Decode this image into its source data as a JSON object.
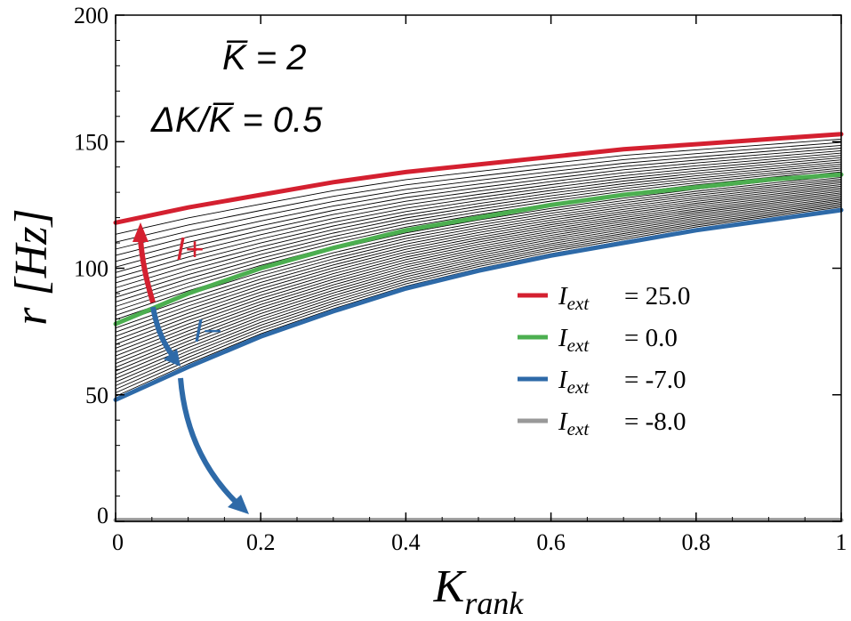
{
  "chart_data": {
    "type": "line",
    "xlabel_main": "K",
    "xlabel_sub": "rank",
    "ylabel": "r [Hz]",
    "xlim": [
      0,
      1
    ],
    "ylim": [
      0,
      200
    ],
    "xticks": [
      0,
      0.2,
      0.4,
      0.6,
      0.8,
      1
    ],
    "xtick_labels": [
      "0",
      "0.2",
      "0.4",
      "0.6",
      "0.8",
      "1"
    ],
    "yticks": [
      0,
      50,
      100,
      150,
      200
    ],
    "ytick_labels": [
      "0",
      "50",
      "100",
      "150",
      "200"
    ],
    "annotation_kbar": "K̅ = 2",
    "annotation_dk": "ΔK/K̅ = 0.5",
    "arrow_plus_label": "I+",
    "arrow_minus_label": "I−",
    "background_curve_count": 38,
    "series": [
      {
        "name": "Iext = 25.0",
        "color": "#d42030",
        "x": [
          0,
          0.1,
          0.2,
          0.3,
          0.4,
          0.5,
          0.6,
          0.7,
          0.8,
          0.9,
          1.0
        ],
        "y": [
          118,
          124,
          129,
          134,
          138,
          141,
          144,
          147,
          149,
          151,
          153
        ]
      },
      {
        "name": "Iext = 0.0",
        "color": "#4caf50",
        "x": [
          0,
          0.1,
          0.2,
          0.3,
          0.4,
          0.5,
          0.6,
          0.7,
          0.8,
          0.9,
          1.0
        ],
        "y": [
          78,
          90,
          100,
          108,
          115,
          120,
          125,
          129,
          132,
          135,
          137
        ]
      },
      {
        "name": "Iext = -7.0",
        "color": "#2e6aa8",
        "x": [
          0,
          0.1,
          0.2,
          0.3,
          0.4,
          0.5,
          0.6,
          0.7,
          0.8,
          0.9,
          1.0
        ],
        "y": [
          48,
          61,
          73,
          83,
          92,
          99,
          105,
          110,
          115,
          119,
          123
        ]
      },
      {
        "name": "Iext = -8.0",
        "color": "#999999",
        "x": [
          0,
          1.0
        ],
        "y": [
          0.5,
          0.5
        ]
      }
    ],
    "legend": [
      {
        "label_main": "I",
        "label_sub": "ext",
        "value": "=  25.0",
        "color": "#d42030"
      },
      {
        "label_main": "I",
        "label_sub": "ext",
        "value": "=   0.0",
        "color": "#4caf50"
      },
      {
        "label_main": "I",
        "label_sub": "ext",
        "value": "=  -7.0",
        "color": "#2e6aa8"
      },
      {
        "label_main": "I",
        "label_sub": "ext",
        "value": "=  -8.0",
        "color": "#999999"
      }
    ]
  }
}
